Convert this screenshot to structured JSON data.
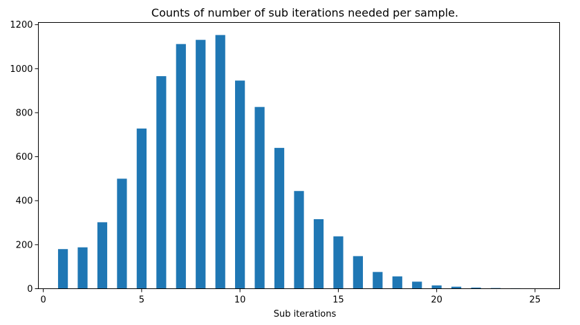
{
  "chart_data": {
    "type": "bar",
    "title": "Counts of number of sub iterations needed per sample.",
    "xlabel": "Sub iterations",
    "ylabel": "",
    "x": [
      1,
      2,
      3,
      4,
      5,
      6,
      7,
      8,
      9,
      10,
      11,
      12,
      13,
      14,
      15,
      16,
      17,
      18,
      19,
      20,
      21,
      22,
      23,
      24,
      25
    ],
    "values": [
      180,
      188,
      302,
      500,
      728,
      966,
      1112,
      1131,
      1153,
      946,
      826,
      640,
      444,
      316,
      238,
      148,
      76,
      56,
      32,
      15,
      9,
      5,
      3,
      2,
      1
    ],
    "xlim": [
      -0.25,
      26.25
    ],
    "ylim": [
      0,
      1210
    ],
    "xticks": [
      "0",
      "5",
      "10",
      "15",
      "20",
      "25"
    ],
    "yticks": [
      "0",
      "200",
      "400",
      "600",
      "800",
      "1000",
      "1200"
    ],
    "bar_color": "#1f77b4",
    "grid": false,
    "legend": "none"
  }
}
